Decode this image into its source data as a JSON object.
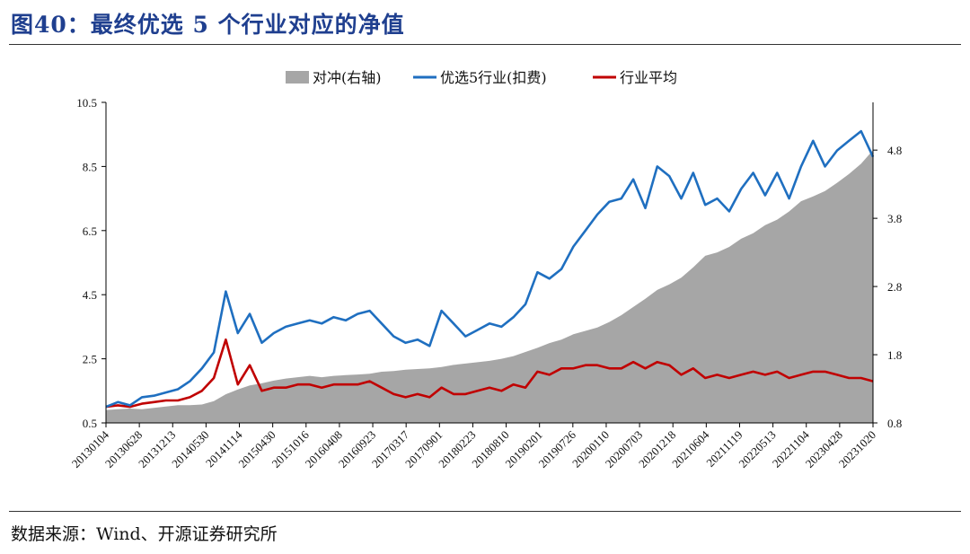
{
  "figure_title": "图40：最终优选 5 个行业对应的净值",
  "source": "数据来源：Wind、开源证券研究所",
  "chart_data": {
    "type": "area",
    "title": "",
    "series": [
      {
        "name": "对冲(右轴)",
        "type": "area",
        "axis": "right",
        "color": "#a6a6a6",
        "values": [
          0.99,
          1.0,
          1.01,
          1.0,
          1.02,
          1.04,
          1.06,
          1.06,
          1.07,
          1.12,
          1.22,
          1.29,
          1.35,
          1.38,
          1.42,
          1.45,
          1.47,
          1.49,
          1.47,
          1.49,
          1.5,
          1.51,
          1.52,
          1.55,
          1.56,
          1.58,
          1.59,
          1.6,
          1.62,
          1.65,
          1.67,
          1.69,
          1.71,
          1.74,
          1.78,
          1.84,
          1.9,
          1.97,
          2.02,
          2.1,
          2.15,
          2.2,
          2.28,
          2.38,
          2.5,
          2.62,
          2.75,
          2.83,
          2.93,
          3.08,
          3.25,
          3.3,
          3.38,
          3.5,
          3.58,
          3.7,
          3.78,
          3.9,
          4.05,
          4.12,
          4.2,
          4.32,
          4.45,
          4.6,
          4.8
        ]
      },
      {
        "name": "优选5行业(扣费)",
        "type": "line",
        "axis": "left",
        "color": "#1f6fc0",
        "values": [
          1.0,
          1.15,
          1.05,
          1.3,
          1.35,
          1.45,
          1.55,
          1.8,
          2.2,
          2.7,
          4.6,
          3.3,
          3.9,
          3.0,
          3.3,
          3.5,
          3.6,
          3.7,
          3.6,
          3.8,
          3.7,
          3.9,
          4.0,
          3.6,
          3.2,
          3.0,
          3.1,
          2.9,
          4.0,
          3.6,
          3.2,
          3.4,
          3.6,
          3.5,
          3.8,
          4.2,
          5.2,
          5.0,
          5.3,
          6.0,
          6.5,
          7.0,
          7.4,
          7.5,
          8.1,
          7.2,
          8.5,
          8.2,
          7.5,
          8.3,
          7.3,
          7.5,
          7.1,
          7.8,
          8.3,
          7.6,
          8.3,
          7.5,
          8.5,
          9.3,
          8.5,
          9.0,
          9.3,
          9.6,
          8.8
        ]
      },
      {
        "name": "行业平均",
        "type": "line",
        "axis": "left",
        "color": "#c00000",
        "values": [
          1.0,
          1.05,
          1.0,
          1.1,
          1.15,
          1.2,
          1.2,
          1.3,
          1.5,
          1.9,
          3.1,
          1.7,
          2.3,
          1.5,
          1.6,
          1.6,
          1.7,
          1.7,
          1.6,
          1.7,
          1.7,
          1.7,
          1.8,
          1.6,
          1.4,
          1.3,
          1.4,
          1.3,
          1.6,
          1.4,
          1.4,
          1.5,
          1.6,
          1.5,
          1.7,
          1.6,
          2.1,
          2.0,
          2.2,
          2.2,
          2.3,
          2.3,
          2.2,
          2.2,
          2.4,
          2.2,
          2.4,
          2.3,
          2.0,
          2.2,
          1.9,
          2.0,
          1.9,
          2.0,
          2.1,
          2.0,
          2.1,
          1.9,
          2.0,
          2.1,
          2.1,
          2.0,
          1.9,
          1.9,
          1.8
        ]
      }
    ],
    "x_tick_labels": [
      "20130104",
      "20130628",
      "20131213",
      "20140530",
      "20141114",
      "20150430",
      "20151016",
      "20160408",
      "20160923",
      "20170317",
      "20170901",
      "20180223",
      "20180810",
      "20190201",
      "20190726",
      "20200110",
      "20200703",
      "20201218",
      "20210604",
      "20211119",
      "20220513",
      "20221104",
      "20230428",
      "20231020"
    ],
    "y_left": {
      "ticks": [
        "0.5",
        "2.5",
        "4.5",
        "6.5",
        "8.5",
        "10.5"
      ],
      "range": [
        0.5,
        10.5
      ]
    },
    "y_right": {
      "ticks": [
        "0.8",
        "1.8",
        "2.8",
        "3.8",
        "4.8"
      ],
      "range": [
        0.8,
        5.5
      ]
    },
    "legend_position": "top",
    "grid": false
  }
}
